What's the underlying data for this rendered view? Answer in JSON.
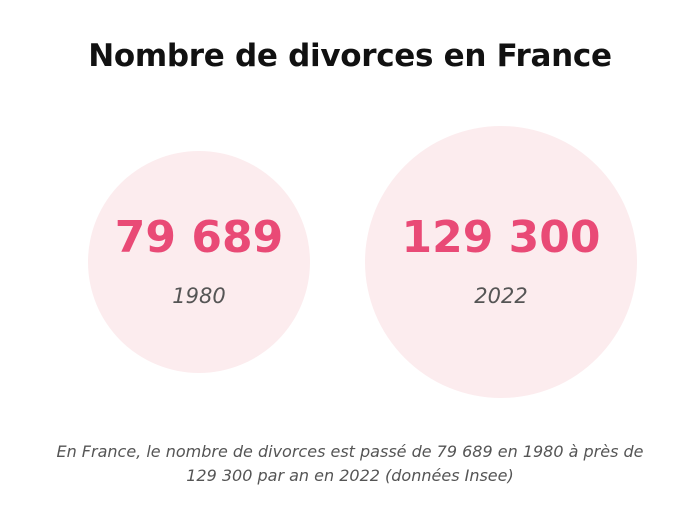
{
  "chart_data": {
    "type": "bubble",
    "title": "Nombre de divorces en France",
    "categories": [
      "1980",
      "2022"
    ],
    "values": [
      79689,
      129300
    ],
    "value_labels": [
      "79 689",
      "129 300"
    ],
    "colors": {
      "value": "#e94a76",
      "bubble": "#fcecee",
      "year": "#555555",
      "title": "#111111"
    }
  },
  "caption": "En France, le nombre de divorces est passé de 79 689 en 1980 à près de 129 300 par an en 2022 (données Insee)"
}
